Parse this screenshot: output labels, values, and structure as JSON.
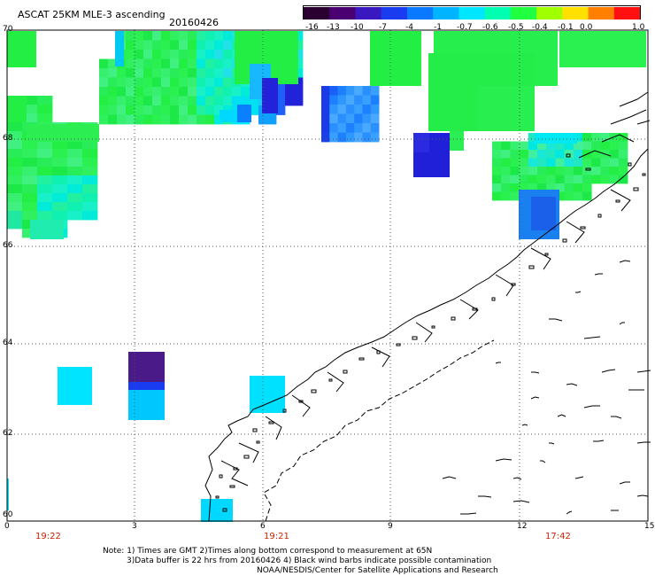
{
  "header": {
    "title": "ASCAT 25KM MLE-3 ascending",
    "date": "20160426"
  },
  "colorbar": {
    "labels": [
      "-16",
      "-13",
      "-10",
      "-7",
      "-4",
      "-1",
      "-0.7",
      "-0.6",
      "-0.5",
      "-0.4",
      "-0.1",
      "0.0",
      "1.0"
    ],
    "colors": [
      "#2a0030",
      "#4a0070",
      "#3a18c0",
      "#1a3cf0",
      "#0a78ff",
      "#00b4ff",
      "#00e6ff",
      "#00ffb0",
      "#20ff40",
      "#a0ff00",
      "#ffe000",
      "#ff8000",
      "#ff1010"
    ]
  },
  "axes": {
    "y_ticks": [
      "70",
      "68",
      "66",
      "64",
      "62",
      "60"
    ],
    "x_ticks": [
      "0",
      "3",
      "6",
      "9",
      "12",
      "15"
    ]
  },
  "times": [
    "19:22",
    "19:21",
    "17:42"
  ],
  "notes": [
    "Note: 1) Times are GMT 2)Times along bottom correspond to measurement at 65N",
    "3)Data buffer is 22 hrs from 20160426 4) Black wind barbs indicate possible contamination",
    "NOAA/NESDIS/Center for Satellite Applications and Research"
  ],
  "palette": {
    "green": "#22ee44",
    "green2": "#33f05a",
    "teal": "#00f0c0",
    "cyan": "#00e0ff",
    "lightblue": "#20a8ff",
    "blue": "#1a5cf0",
    "darkblue": "#2222d8",
    "purple": "#4a1a88"
  }
}
